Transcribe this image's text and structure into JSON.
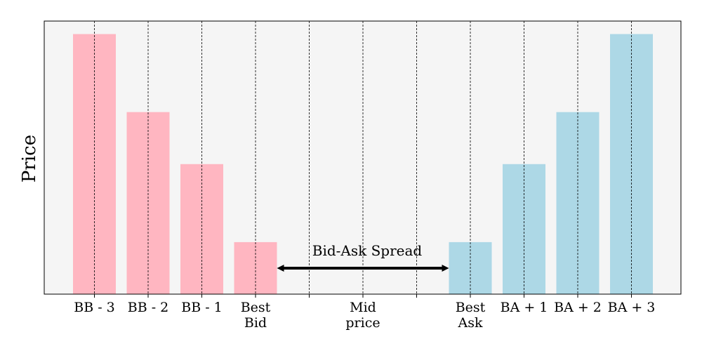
{
  "chart_data": {
    "type": "bar",
    "title": "",
    "xlabel": "",
    "ylabel": "Price",
    "categories": [
      "BB - 3",
      "BB - 2",
      "BB - 1",
      "Best\nBid",
      "",
      "Mid\nprice",
      "",
      "Best\nAsk",
      "BA + 1",
      "BA + 2",
      "BA + 3"
    ],
    "values": [
      10,
      7,
      5,
      2,
      null,
      null,
      null,
      2,
      5,
      7,
      10
    ],
    "bar_colors": [
      "#ffb6c1",
      "#ffb6c1",
      "#ffb6c1",
      "#ffb6c1",
      null,
      null,
      null,
      "#add8e6",
      "#add8e6",
      "#add8e6",
      "#add8e6"
    ],
    "ylim": [
      0,
      10.5
    ],
    "grid": "x-dashed",
    "annotation": {
      "text": "Bid-Ask Spread",
      "from_category": 3,
      "to_category": 7
    },
    "colors": {
      "bid": "#ffb6c1",
      "ask": "#add8e6",
      "plot_background": "#f5f5f5"
    }
  }
}
